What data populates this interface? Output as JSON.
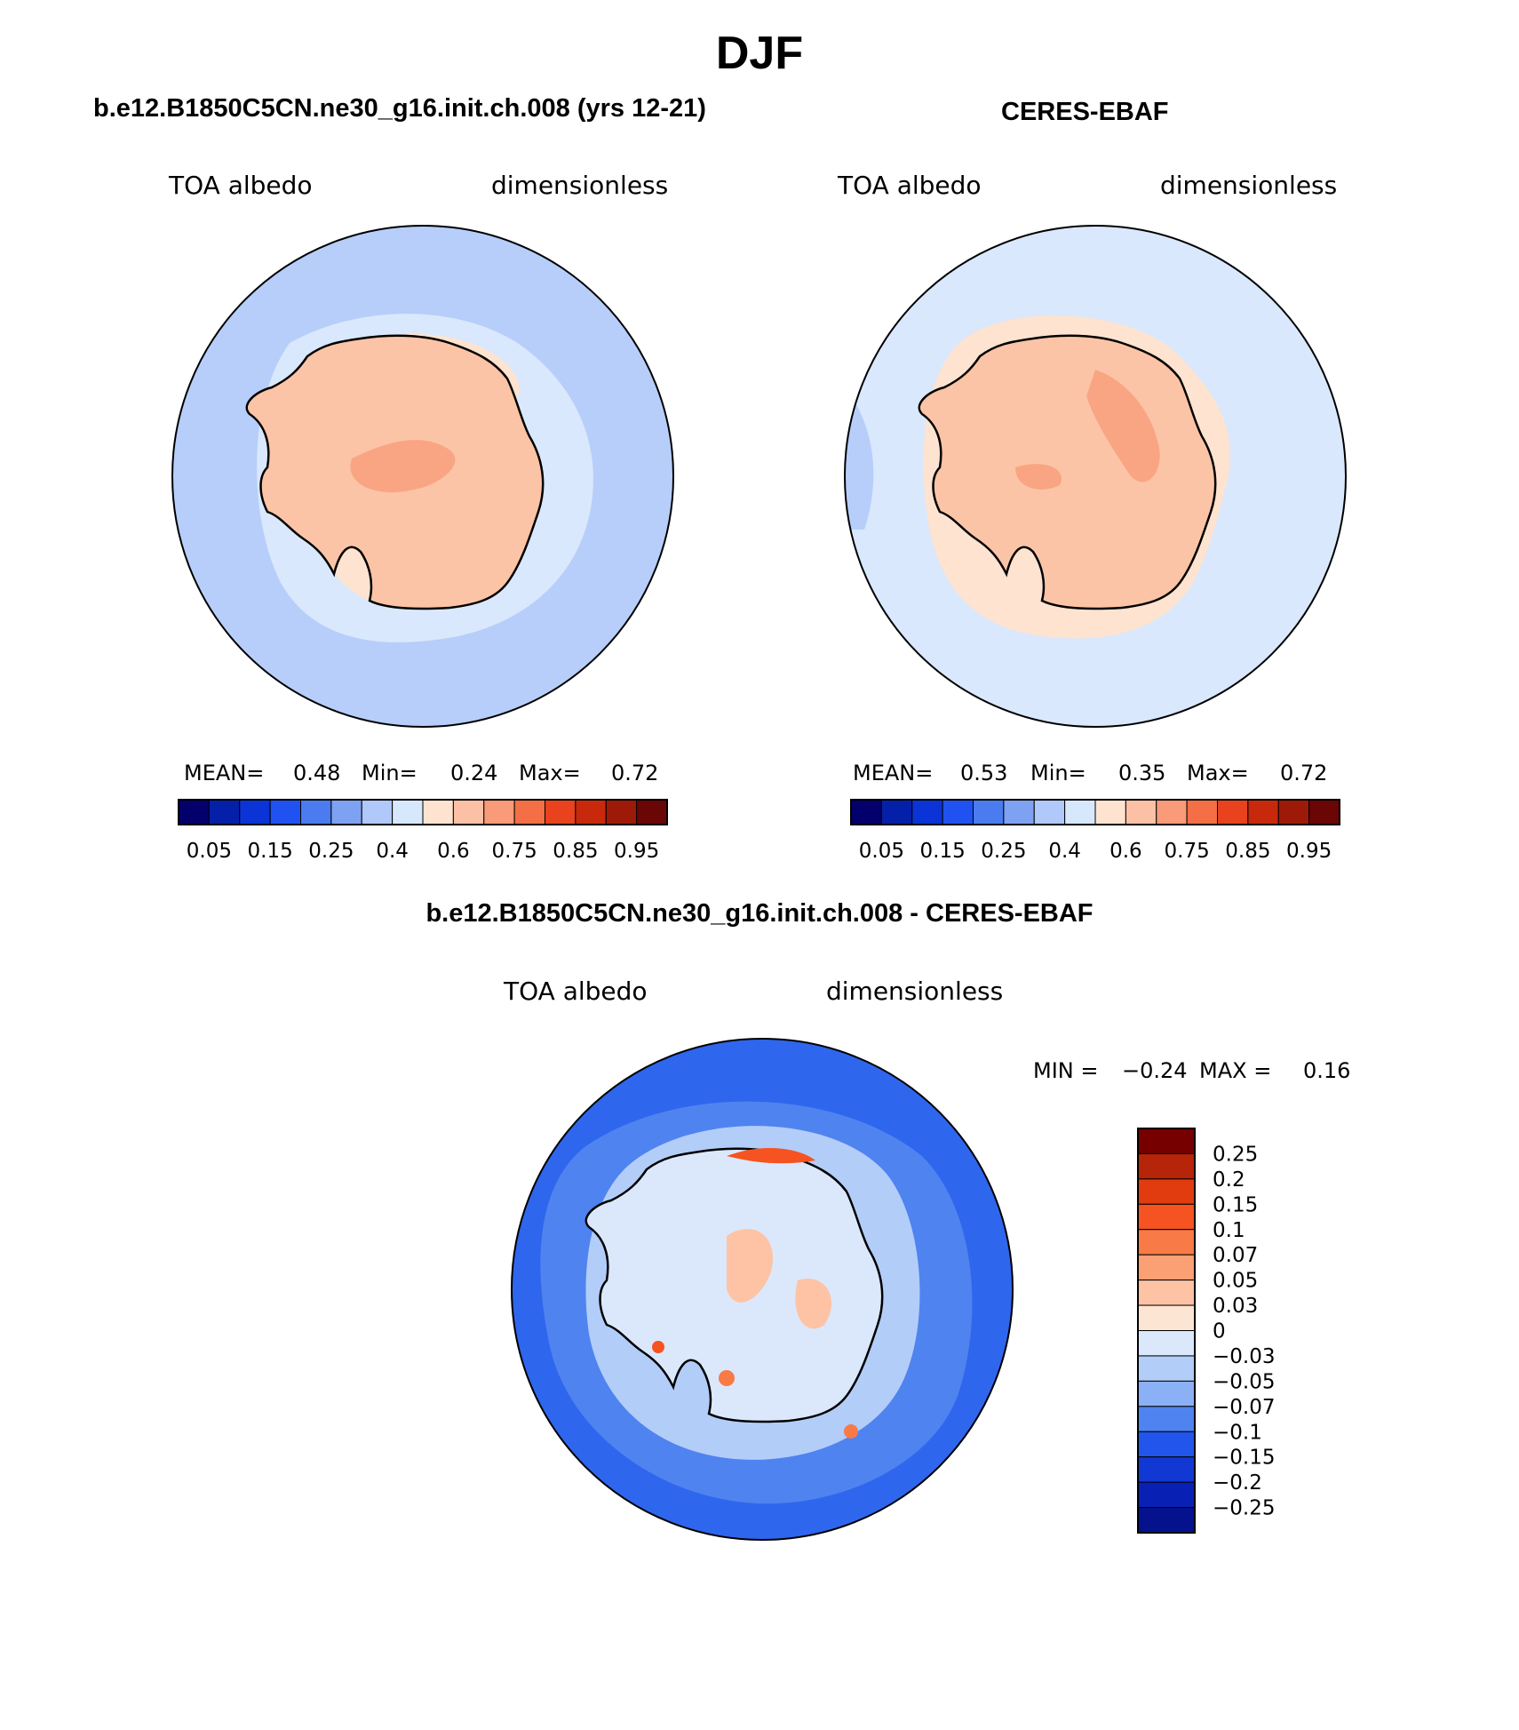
{
  "title": "DJF",
  "panels": [
    {
      "id": "model",
      "title": "b.e12.B1850C5CN.ne30_g16.init.ch.008 (yrs 12-21)",
      "variable": "TOA albedo",
      "units": "dimensionless",
      "stats": {
        "mean_label": "MEAN=",
        "mean": "0.48",
        "min_label": "Min=",
        "min": "0.24",
        "max_label": "Max=",
        "max": "0.72"
      },
      "colorbar_labels": [
        "0.05",
        "0.15",
        "0.25",
        "0.4",
        "0.6",
        "0.75",
        "0.85",
        "0.95"
      ]
    },
    {
      "id": "obs",
      "title": "CERES-EBAF",
      "variable": "TOA albedo",
      "units": "dimensionless",
      "stats": {
        "mean_label": "MEAN=",
        "mean": "0.53",
        "min_label": "Min=",
        "min": "0.35",
        "max_label": "Max=",
        "max": "0.72"
      },
      "colorbar_labels": [
        "0.05",
        "0.15",
        "0.25",
        "0.4",
        "0.6",
        "0.75",
        "0.85",
        "0.95"
      ]
    },
    {
      "id": "diff",
      "title": "b.e12.B1850C5CN.ne30_g16.init.ch.008 - CERES-EBAF",
      "variable": "TOA albedo",
      "units": "dimensionless",
      "stats": {
        "min_label": "MIN =",
        "min": "−0.24",
        "max_label": "MAX =",
        "max": "0.16"
      },
      "colorbar_labels": [
        "0.25",
        "0.2",
        "0.15",
        "0.1",
        "0.07",
        "0.05",
        "0.03",
        "0",
        "−0.03",
        "−0.05",
        "−0.07",
        "−0.1",
        "−0.15",
        "−0.2",
        "−0.25"
      ]
    }
  ],
  "colors": {
    "albedo_scale": [
      "#03006b",
      "#0520a8",
      "#0a34d6",
      "#1f52f0",
      "#4a7cf0",
      "#7ea2f2",
      "#b0c8fa",
      "#d8e8fc",
      "#fde3d0",
      "#fcc1a4",
      "#f99a78",
      "#f46f46",
      "#e8421e",
      "#c8290c",
      "#9e1a08",
      "#6b0606"
    ],
    "diff_scale_top_to_bottom": [
      "#760000",
      "#b62409",
      "#e03c10",
      "#f55321",
      "#f87a46",
      "#fb9f75",
      "#fdc3a4",
      "#fde5d3",
      "#dbe8fb",
      "#b3cdf9",
      "#8cb0f5",
      "#4f83ef",
      "#2255ec",
      "#1238d4",
      "#0821b4",
      "#04128e"
    ],
    "ocean_model": "#b7cefa",
    "ocean_obs": "#d9e8fc",
    "ice_shelf": "#fde3d0",
    "continent": "#fcc4a6",
    "diff_ocean": "#2f66ee"
  }
}
